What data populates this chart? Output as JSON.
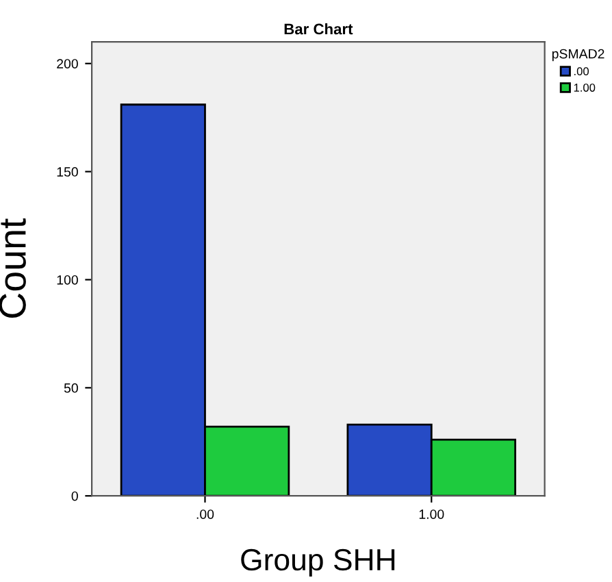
{
  "chart_data": {
    "type": "bar",
    "title": "Bar Chart",
    "xlabel": "Group SHH",
    "ylabel": "Count",
    "legend_title": "pSMAD2",
    "categories": [
      ".00",
      "1.00"
    ],
    "series": [
      {
        "name": ".00",
        "color": "#264bc5",
        "values": [
          181,
          33
        ]
      },
      {
        "name": "1.00",
        "color": "#1ecb3e",
        "values": [
          32,
          26
        ]
      }
    ],
    "ylim": [
      0,
      210
    ],
    "yticks": [
      0,
      50,
      100,
      150,
      200
    ],
    "grid": false,
    "legend": "top right"
  }
}
